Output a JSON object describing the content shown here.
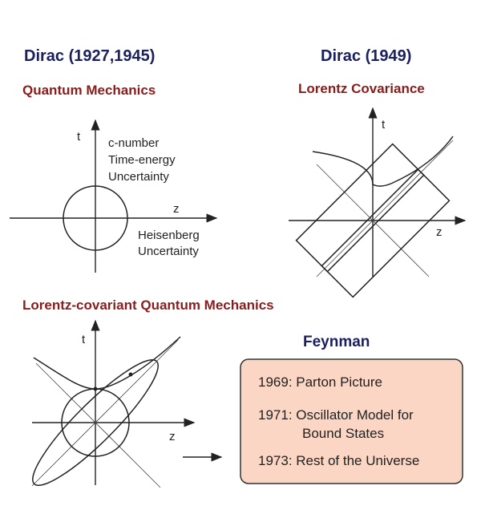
{
  "panels": [
    {
      "heading": "Dirac (1927,1945)",
      "title": "Quantum Mechanics",
      "t_label": "t",
      "z_label": "z",
      "notes": [
        "c-number",
        "Time-energy",
        "Uncertainty",
        "Heisenberg",
        "Uncertainty"
      ]
    },
    {
      "heading": "Dirac (1949)",
      "title": "Lorentz Covariance",
      "t_label": "t",
      "z_label": "z"
    },
    {
      "title": "Lorentz-covariant Quantum Mechanics",
      "t_label": "t",
      "z_label": "z"
    }
  ],
  "feynman": {
    "title": "Feynman",
    "lines": [
      "1969: Parton Picture",
      "1971: Oscillator Model for",
      "Bound States",
      "1973: Rest of the Universe"
    ]
  }
}
